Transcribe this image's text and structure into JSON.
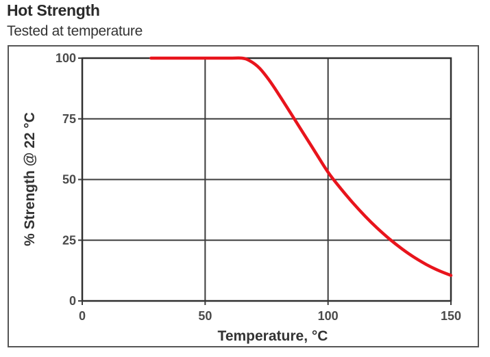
{
  "chart_data": {
    "type": "line",
    "title": "Hot Strength",
    "subtitle": "Tested at temperature",
    "xlabel": "Temperature, °C",
    "ylabel": "% Strength @ 22 °C",
    "xlim": [
      0,
      150
    ],
    "ylim": [
      0,
      100
    ],
    "xticks": [
      0,
      50,
      100,
      150
    ],
    "yticks": [
      0,
      25,
      50,
      75,
      100
    ],
    "grid": true,
    "series": [
      {
        "color": "#e8141c",
        "x": [
          28,
          40,
          50,
          60,
          65,
          68,
          72,
          76,
          80,
          85,
          90,
          95,
          100,
          105,
          110,
          115,
          120,
          125,
          130,
          135,
          140,
          145,
          150
        ],
        "y": [
          100,
          100,
          100,
          100,
          100,
          99,
          96,
          91,
          85,
          77,
          69,
          61,
          53,
          46.5,
          40.5,
          35,
          30,
          25.5,
          21.5,
          18,
          15,
          12.5,
          10.5
        ]
      }
    ]
  }
}
